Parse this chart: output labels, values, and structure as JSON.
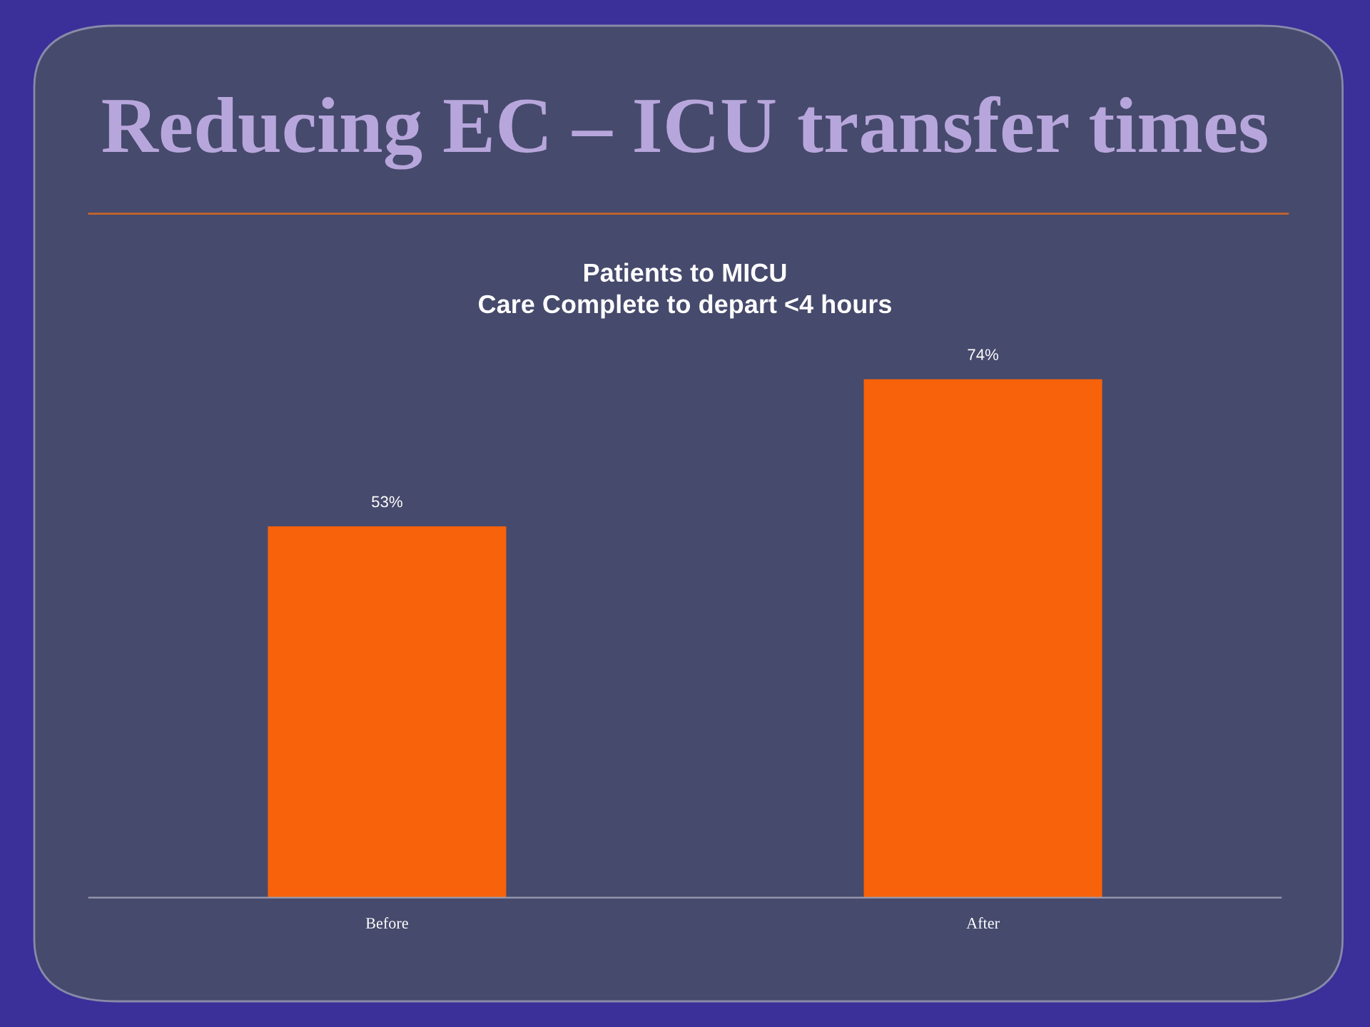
{
  "chart_data": {
    "type": "bar",
    "title": "Reducing EC – ICU transfer times",
    "subtitle": "Patients to MICU\nCare Complete to depart <4 hours",
    "categories": [
      "Before",
      "After"
    ],
    "values": [
      53,
      74
    ],
    "value_labels": [
      "53%",
      "74%"
    ],
    "color": "#f7620a",
    "grid": false,
    "legend": false
  }
}
